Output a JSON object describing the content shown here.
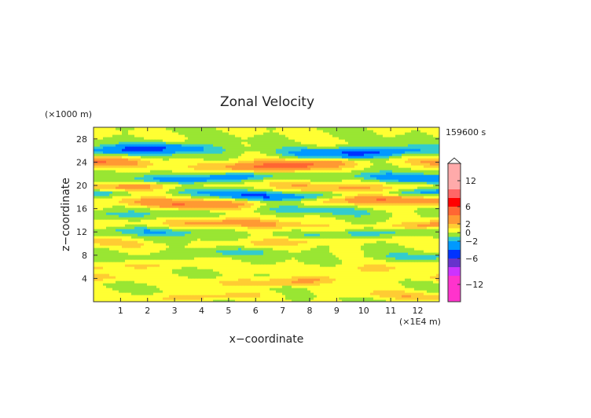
{
  "chart_data": {
    "type": "heatmap",
    "title": "Zonal Velocity",
    "xlabel": "x−coordinate",
    "ylabel": "z−coordinate",
    "x_unit": "(×1E4 m)",
    "y_unit": "(×1000 m)",
    "time_label": "159600 s",
    "xlim": [
      0,
      12.8
    ],
    "ylim": [
      0,
      30
    ],
    "x_ticks": [
      1,
      2,
      3,
      4,
      5,
      6,
      7,
      8,
      9,
      10,
      11,
      12
    ],
    "y_ticks": [
      4,
      8,
      12,
      16,
      20,
      24,
      28
    ],
    "grid": false,
    "colorbar": {
      "placement": "right",
      "tick_values": [
        12,
        6,
        2,
        0,
        -2,
        -6,
        -12
      ],
      "tick_labels": [
        "12",
        "6",
        "2",
        "0",
        "−2",
        "−6",
        "−12"
      ],
      "levels": [
        {
          "min": -16,
          "max": -10,
          "color": "#ff33cc"
        },
        {
          "min": -10,
          "max": -8,
          "color": "#cc33ff"
        },
        {
          "min": -8,
          "max": -6,
          "color": "#6633cc"
        },
        {
          "min": -6,
          "max": -4,
          "color": "#0033ff"
        },
        {
          "min": -4,
          "max": -2,
          "color": "#0099ff"
        },
        {
          "min": -2,
          "max": -1,
          "color": "#33cccc"
        },
        {
          "min": -1,
          "max": 0,
          "color": "#99e633"
        },
        {
          "min": 0,
          "max": 1,
          "color": "#ffff33"
        },
        {
          "min": 1,
          "max": 2,
          "color": "#ffcc33"
        },
        {
          "min": 2,
          "max": 4,
          "color": "#ff9933"
        },
        {
          "min": 4,
          "max": 6,
          "color": "#ff6633"
        },
        {
          "min": 6,
          "max": 8,
          "color": "#ff0000"
        },
        {
          "min": 8,
          "max": 10,
          "color": "#ff6666"
        },
        {
          "min": 10,
          "max": 16,
          "color": "#ffaaaa"
        }
      ]
    },
    "bands": [
      {
        "z": 26.0,
        "amp": -4.5,
        "width": 0.9
      },
      {
        "z": 23.7,
        "amp": 5.0,
        "width": 0.9
      },
      {
        "z": 21.5,
        "amp": -3.5,
        "width": 0.8
      },
      {
        "z": 20.0,
        "amp": 2.5,
        "width": 0.8
      },
      {
        "z": 18.6,
        "amp": -4.0,
        "width": 0.7
      },
      {
        "z": 17.2,
        "amp": 4.0,
        "width": 0.8
      },
      {
        "z": 15.5,
        "amp": -1.5,
        "width": 0.8
      },
      {
        "z": 13.3,
        "amp": 3.0,
        "width": 0.8
      },
      {
        "z": 11.8,
        "amp": -1.8,
        "width": 0.7
      },
      {
        "z": 10.2,
        "amp": 1.5,
        "width": 0.7
      },
      {
        "z": 8.2,
        "amp": -1.2,
        "width": 0.7
      },
      {
        "z": 6.0,
        "amp": 1.2,
        "width": 0.8
      },
      {
        "z": 3.8,
        "amp": 2.2,
        "width": 0.7
      },
      {
        "z": 1.2,
        "amp": 1.5,
        "width": 0.7
      }
    ]
  }
}
